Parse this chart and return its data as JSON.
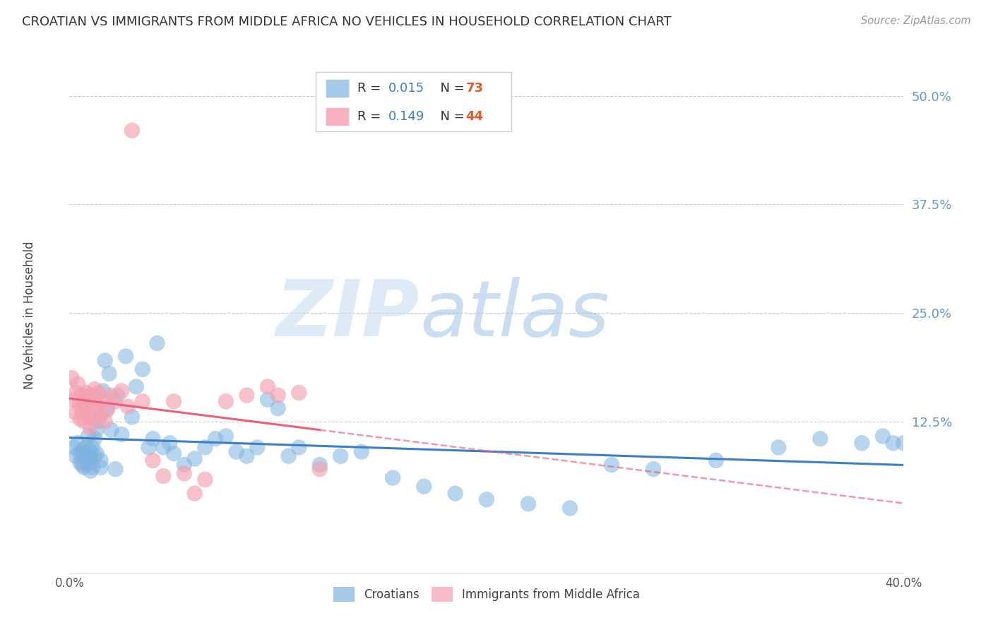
{
  "title": "CROATIAN VS IMMIGRANTS FROM MIDDLE AFRICA NO VEHICLES IN HOUSEHOLD CORRELATION CHART",
  "source": "Source: ZipAtlas.com",
  "ylabel": "No Vehicles in Household",
  "ytick_labels": [
    "50.0%",
    "37.5%",
    "25.0%",
    "12.5%"
  ],
  "ytick_values": [
    0.5,
    0.375,
    0.25,
    0.125
  ],
  "xlim": [
    0.0,
    0.4
  ],
  "ylim": [
    -0.05,
    0.545
  ],
  "croatian_color": "#7EB3E0",
  "immigrant_color": "#F4A0B0",
  "trendline_croatian_color": "#3B7FC4",
  "trendline_immigrant_color": "#E8607A",
  "background_color": "#FFFFFF",
  "watermark_zip": "ZIP",
  "watermark_atlas": "atlas",
  "croatian_label": "Croatians",
  "immigrant_label": "Immigrants from Middle Africa",
  "R_croatian": 0.015,
  "N_croatian": 73,
  "R_immigrant": 0.149,
  "N_immigrant": 44,
  "grid_color": "#CCCCCC",
  "legend_color_R": "#3B7FC4",
  "legend_color_N": "#E05A28"
}
